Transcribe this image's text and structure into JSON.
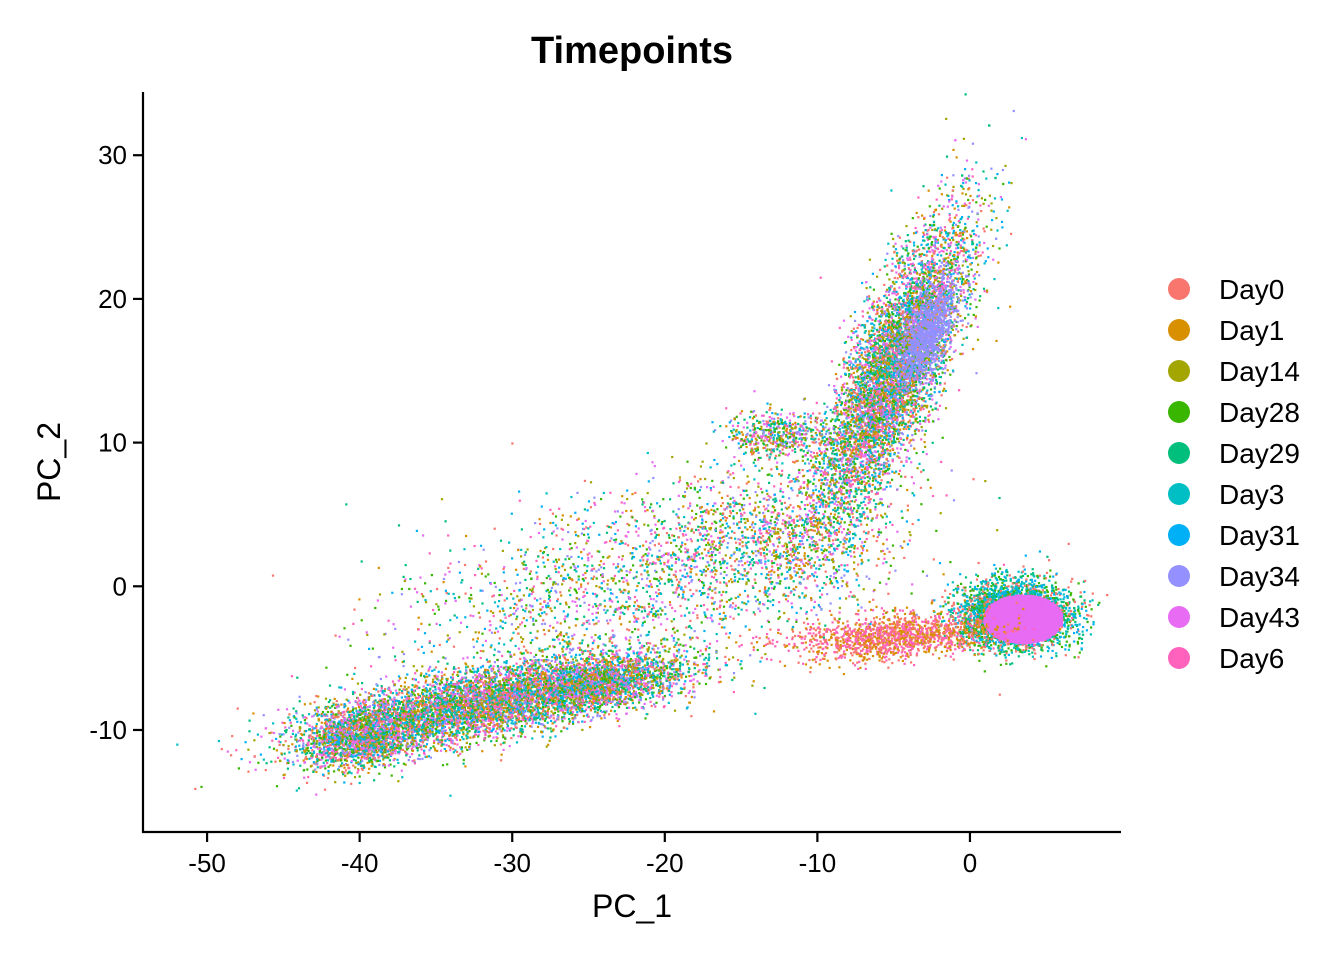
{
  "chart_data": {
    "type": "scatter",
    "title": "Timepoints",
    "xlabel": "PC_1",
    "ylabel": "PC_2",
    "xlim": [
      -54.2,
      9.9
    ],
    "ylim": [
      -17.1,
      34.4
    ],
    "x_ticks": [
      -50,
      -40,
      -30,
      -20,
      -10,
      0
    ],
    "y_ticks": [
      -10,
      0,
      10,
      20,
      30
    ],
    "grid": false,
    "legend_position": "right",
    "series": [
      {
        "name": "Day0",
        "color": "#F8766D"
      },
      {
        "name": "Day1",
        "color": "#D89000"
      },
      {
        "name": "Day14",
        "color": "#A3A500"
      },
      {
        "name": "Day28",
        "color": "#39B600"
      },
      {
        "name": "Day29",
        "color": "#00BF7D"
      },
      {
        "name": "Day3",
        "color": "#00BFC4"
      },
      {
        "name": "Day31",
        "color": "#00B0F6"
      },
      {
        "name": "Day34",
        "color": "#9590FF"
      },
      {
        "name": "Day43",
        "color": "#E76BF3"
      },
      {
        "name": "Day6",
        "color": "#FF62BC"
      }
    ],
    "point_clusters": [
      {
        "shape": "ellipse",
        "cx": -32,
        "cy": -8.2,
        "rx": 10.5,
        "ry": 2.2,
        "angle_deg": 12,
        "count": 5500,
        "mix": "all"
      },
      {
        "shape": "ellipse",
        "cx": -40,
        "cy": -10.5,
        "rx": 3.6,
        "ry": 2.0,
        "angle_deg": 15,
        "count": 1500,
        "mix": "all"
      },
      {
        "shape": "ellipse",
        "cx": -24,
        "cy": -6.8,
        "rx": 5.0,
        "ry": 1.6,
        "angle_deg": 10,
        "count": 1500,
        "mix": "all"
      },
      {
        "shape": "ellipse",
        "cx": -5,
        "cy": 15.0,
        "rx": 2.6,
        "ry": 10.0,
        "angle_deg": -22,
        "count": 6500,
        "mix": "all"
      },
      {
        "shape": "ellipse",
        "cx": -2.8,
        "cy": 17.5,
        "rx": 1.2,
        "ry": 3.2,
        "angle_deg": -22,
        "count": 900,
        "mix": "Day34"
      },
      {
        "shape": "ellipse",
        "cx": -12.5,
        "cy": 10.5,
        "rx": 3.0,
        "ry": 1.6,
        "angle_deg": 0,
        "count": 500,
        "mix": "all"
      },
      {
        "shape": "ellipse",
        "cx": 3,
        "cy": -2.0,
        "rx": 3.3,
        "ry": 2.1,
        "angle_deg": 0,
        "count": 3500,
        "mix": "Day29,Day28,Day0,Day31,Day3"
      },
      {
        "shape": "ellipse",
        "cx": 3.5,
        "cy": -2.3,
        "rx": 2.5,
        "ry": 1.6,
        "angle_deg": 0,
        "count": 4000,
        "mix": "Day43"
      },
      {
        "shape": "ellipse",
        "cx": -5,
        "cy": -3.5,
        "rx": 6.0,
        "ry": 1.4,
        "angle_deg": 5,
        "count": 1400,
        "mix": "Day0,Day1,Day6"
      },
      {
        "shape": "ellipse",
        "cx": -22,
        "cy": 0.5,
        "rx": 15.0,
        "ry": 5.5,
        "angle_deg": 18,
        "count": 2000,
        "mix": "all"
      },
      {
        "shape": "ellipse",
        "cx": -12,
        "cy": 3.0,
        "rx": 6.5,
        "ry": 4.5,
        "angle_deg": 0,
        "count": 900,
        "mix": "all"
      }
    ]
  }
}
